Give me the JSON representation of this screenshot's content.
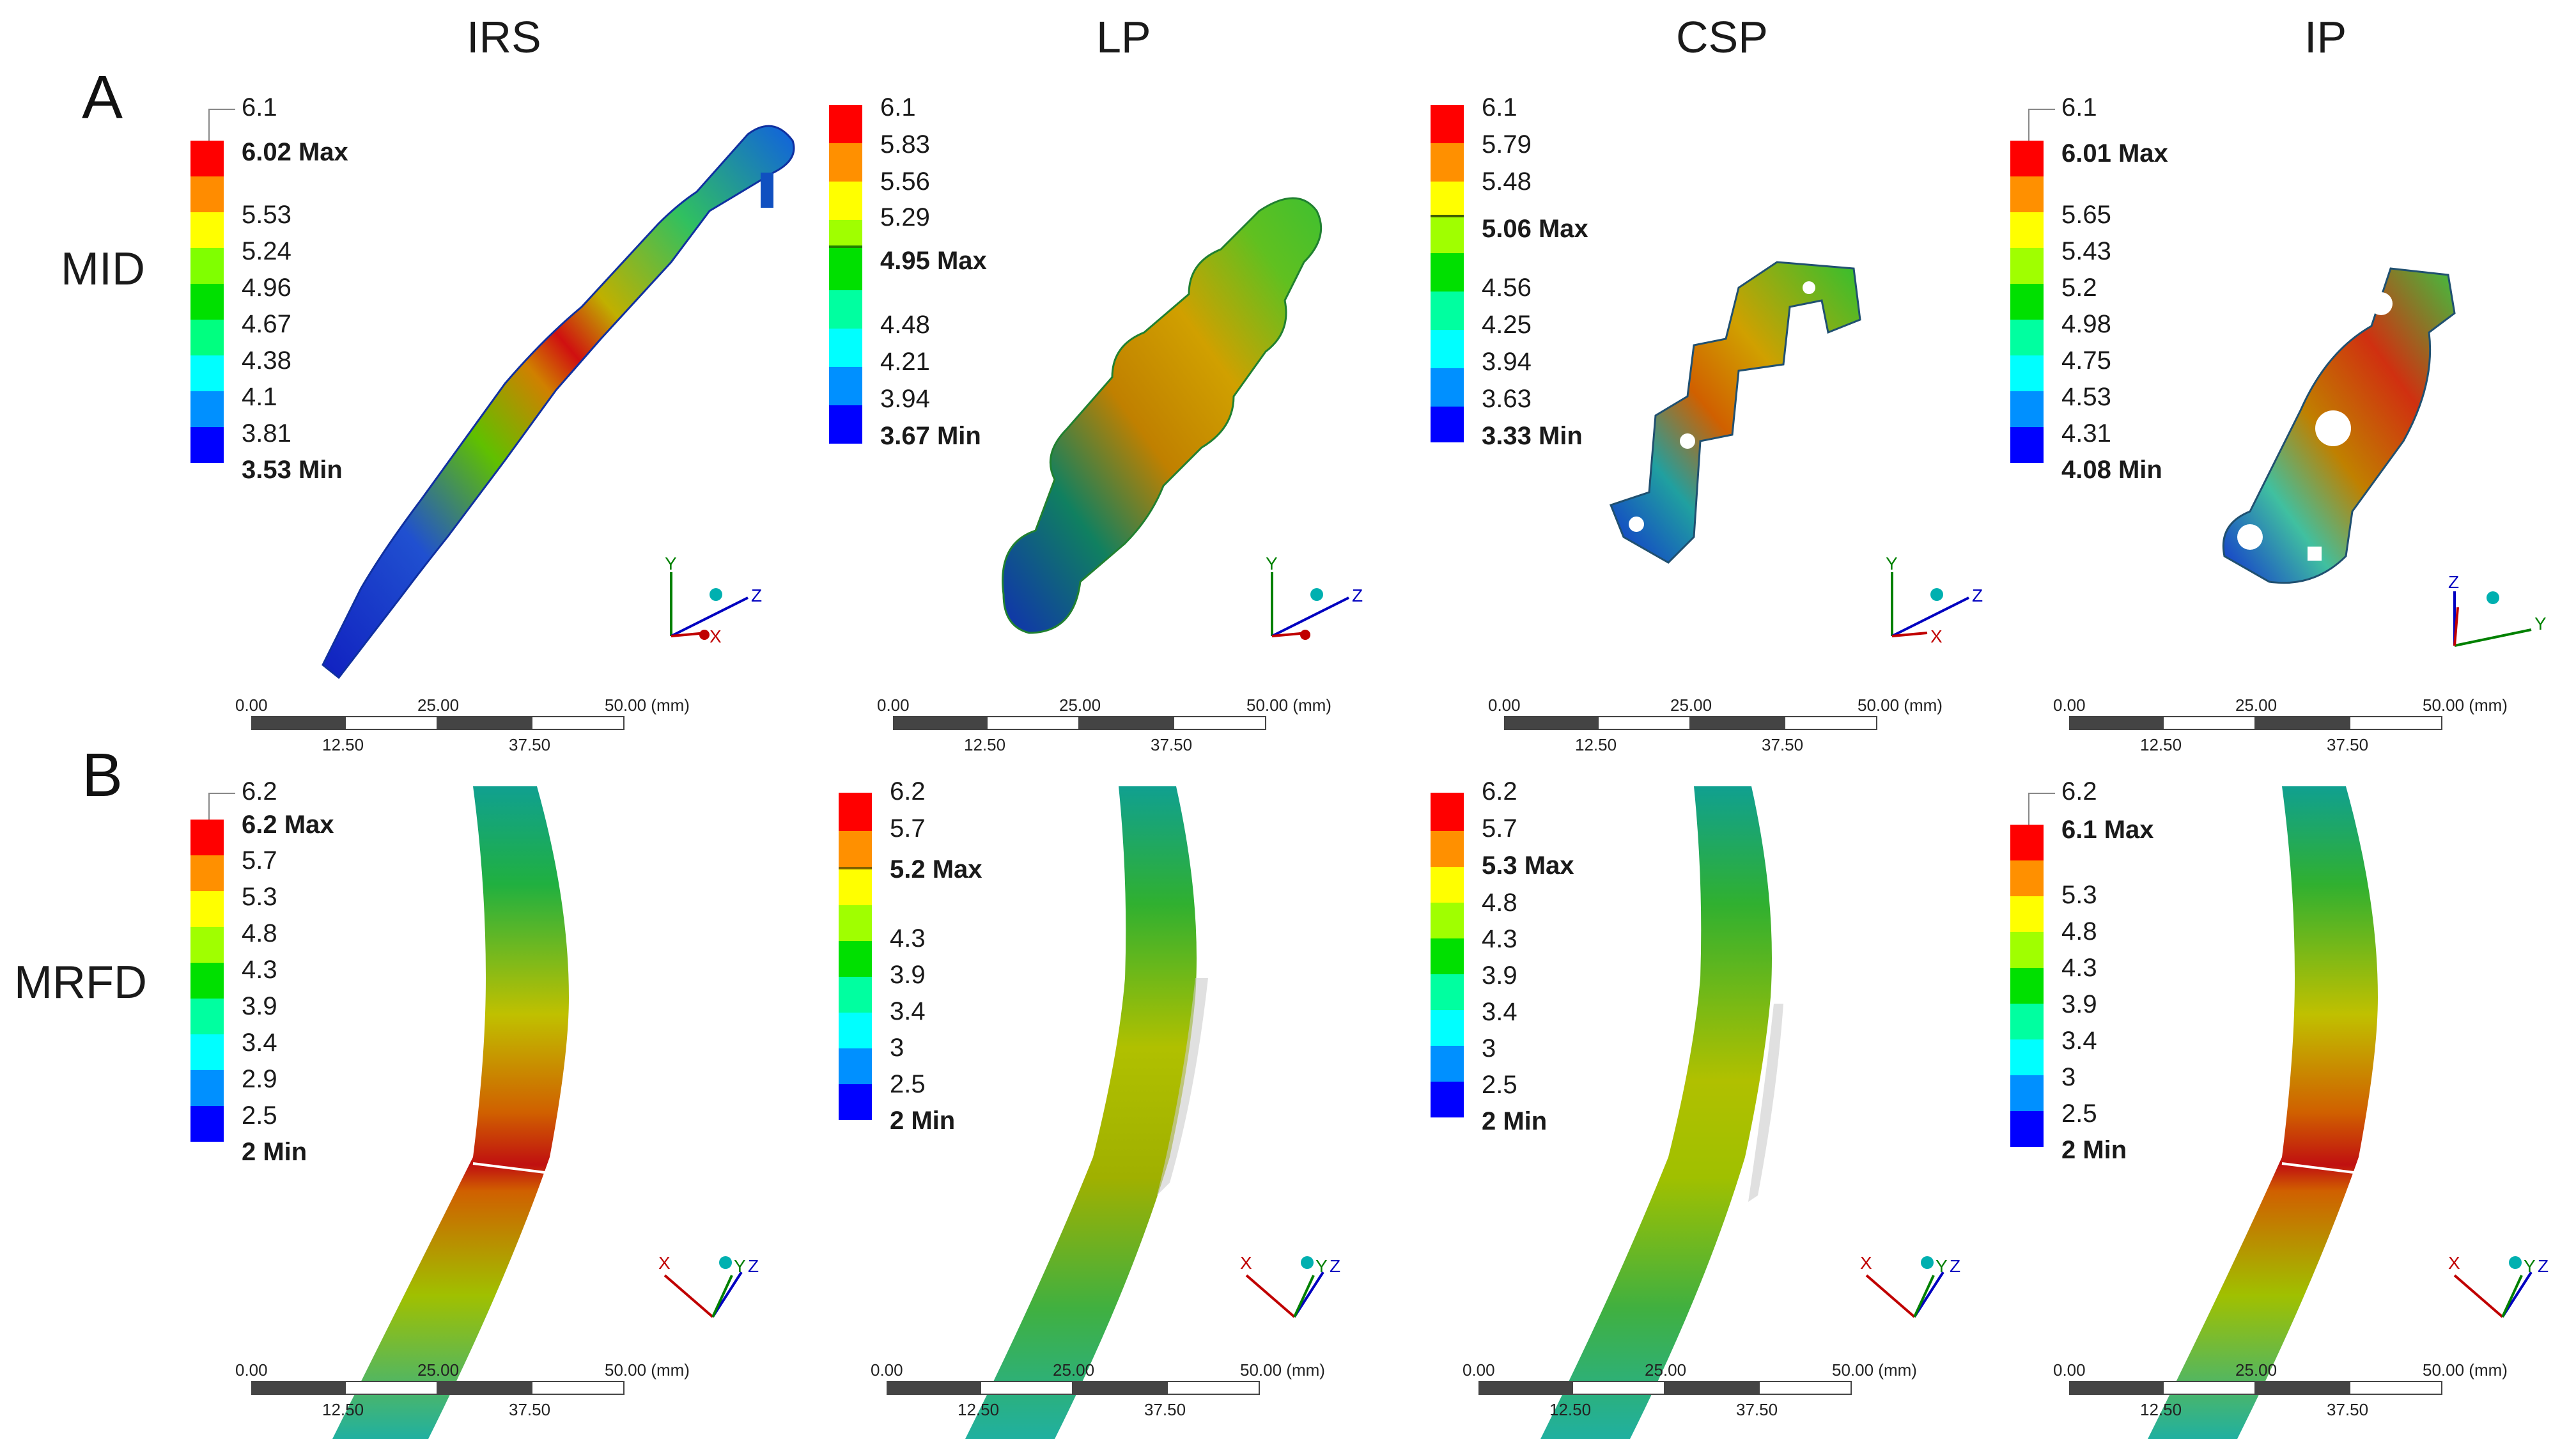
{
  "columns": [
    "IRS",
    "LP",
    "CSP",
    "IP"
  ],
  "panels": {
    "a": "A",
    "b": "B"
  },
  "rows": {
    "mid": "MID",
    "mrfd": "MRFD"
  },
  "colors": {
    "scale": [
      "#0000ff",
      "#0080ff",
      "#00ffff",
      "#00ff80",
      "#00e000",
      "#80ff00",
      "#ffff00",
      "#ffb000",
      "#ff8000",
      "#ff0000"
    ],
    "x_axis": "#c00000",
    "y_axis": "#008000",
    "z_axis": "#0000c0",
    "origin": "#00b0b0"
  },
  "legends": {
    "mid_irs": {
      "labels": [
        "6.1",
        "6.02 Max",
        "5.53",
        "5.24",
        "4.96",
        "4.67",
        "4.38",
        "4.1",
        "3.81",
        "3.53 Min"
      ]
    },
    "mid_lp": {
      "labels": [
        "6.1",
        "5.83",
        "5.56",
        "5.29",
        "4.95 Max",
        "4.48",
        "4.21",
        "3.94",
        "3.67 Min"
      ]
    },
    "mid_csp": {
      "labels": [
        "6.1",
        "5.79",
        "5.48",
        "5.06 Max",
        "4.56",
        "4.25",
        "3.94",
        "3.63",
        "3.33 Min"
      ]
    },
    "mid_ip": {
      "labels": [
        "6.1",
        "6.01 Max",
        "5.65",
        "5.43",
        "5.2",
        "4.98",
        "4.75",
        "4.53",
        "4.31",
        "4.08 Min"
      ]
    },
    "mrfd_irs": {
      "labels": [
        "6.2",
        "6.2 Max",
        "5.7",
        "5.3",
        "4.8",
        "4.3",
        "3.9",
        "3.4",
        "2.9",
        "2.5",
        "2 Min"
      ]
    },
    "mrfd_lp": {
      "labels": [
        "6.2",
        "5.7",
        "5.2 Max",
        "4.3",
        "3.9",
        "3.4",
        "3",
        "2.5",
        "2 Min"
      ]
    },
    "mrfd_csp": {
      "labels": [
        "6.2",
        "5.7",
        "5.3 Max",
        "4.8",
        "4.3",
        "3.9",
        "3.4",
        "3",
        "2.5",
        "2 Min"
      ]
    },
    "mrfd_ip": {
      "labels": [
        "6.2",
        "6.1 Max",
        "5.3",
        "4.8",
        "4.3",
        "3.9",
        "3.4",
        "3",
        "2.5",
        "2 Min"
      ]
    }
  },
  "scale_bar": {
    "t0": "0.00",
    "t1": "25.00",
    "t2": "50.00 (mm)",
    "b1": "12.50",
    "b2": "37.50"
  },
  "axes": {
    "x": "X",
    "y": "Y",
    "z": "Z"
  }
}
